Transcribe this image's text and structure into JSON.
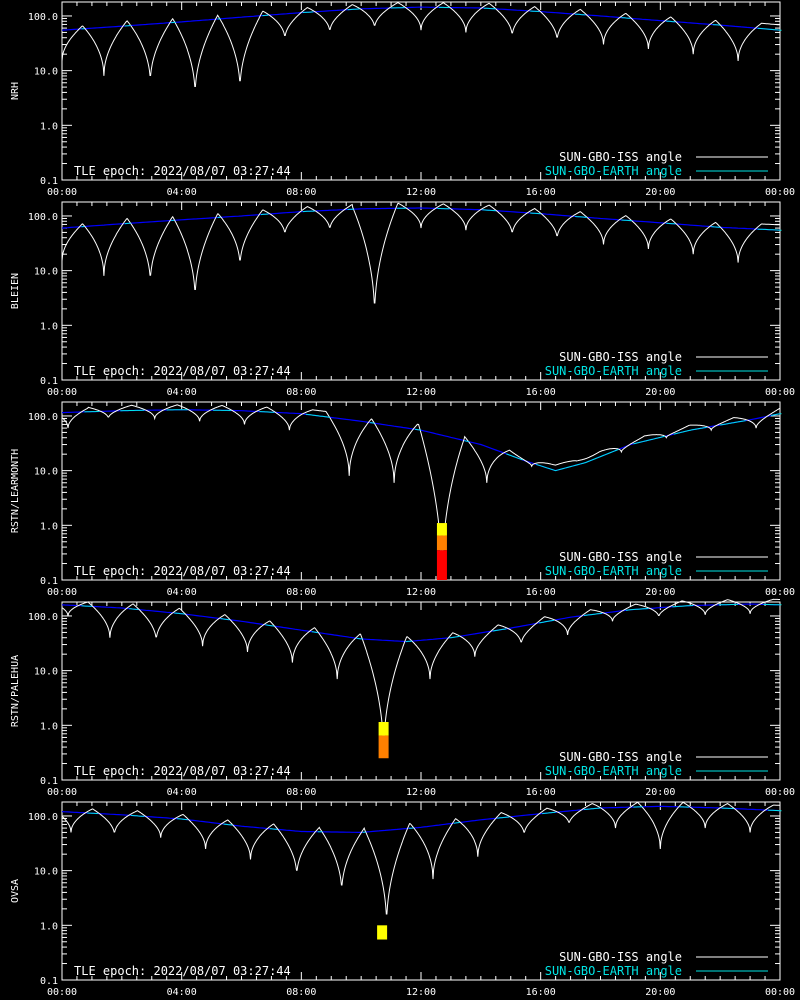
{
  "figure": {
    "epoch_label": "TLE epoch: 2022/08/07 03:27:44",
    "legend": [
      {
        "label": "SUN-GBO-ISS angle",
        "color": "#ffffff"
      },
      {
        "label": "SUN-GBO-EARTH angle",
        "color": "#00e5e5"
      }
    ],
    "earth_shadow_color": "#0000ff",
    "mark_colors": {
      "yellow": "#ffff00",
      "orange": "#ff8000",
      "red": "#ff0000"
    }
  },
  "chart_data": [
    {
      "type": "line",
      "ylabel": "NRH",
      "yscale": "log",
      "ylim": [
        0.1,
        180
      ],
      "x_ticks": [
        "00:00",
        "04:00",
        "08:00",
        "12:00",
        "16:00",
        "20:00",
        "00:00"
      ],
      "y_ticks": [
        "0.1",
        "1.0",
        "10.0",
        "100.0"
      ],
      "earth_angle": {
        "x_hours": [
          0,
          2,
          4,
          6,
          8,
          10,
          12,
          14,
          16,
          18,
          20,
          22,
          24
        ],
        "values": [
          55,
          65,
          78,
          95,
          115,
          135,
          145,
          140,
          120,
          100,
          82,
          68,
          55
        ]
      },
      "iss_minima": [
        {
          "t": 0.0,
          "v": 15
        },
        {
          "t": 1.4,
          "v": 8
        },
        {
          "t": 2.95,
          "v": 6
        },
        {
          "t": 4.45,
          "v": 3.5
        },
        {
          "t": 5.95,
          "v": 4.5
        },
        {
          "t": 7.45,
          "v": 38
        },
        {
          "t": 8.95,
          "v": 50
        },
        {
          "t": 10.45,
          "v": 60
        },
        {
          "t": 12.0,
          "v": 55
        },
        {
          "t": 13.5,
          "v": 50
        },
        {
          "t": 15.05,
          "v": 42
        },
        {
          "t": 16.55,
          "v": 35
        },
        {
          "t": 18.1,
          "v": 30
        },
        {
          "t": 19.6,
          "v": 25
        },
        {
          "t": 21.1,
          "v": 20
        },
        {
          "t": 22.6,
          "v": 15
        }
      ],
      "occultations": []
    },
    {
      "type": "line",
      "ylabel": "BLEIEN",
      "yscale": "log",
      "ylim": [
        0.1,
        180
      ],
      "x_ticks": [
        "00:00",
        "04:00",
        "08:00",
        "12:00",
        "16:00",
        "20:00",
        "00:00"
      ],
      "y_ticks": [
        "0.1",
        "1.0",
        "10.0",
        "100.0"
      ],
      "earth_angle": {
        "x_hours": [
          0,
          2,
          4,
          6,
          8,
          10,
          12,
          14,
          16,
          18,
          20,
          22,
          24
        ],
        "values": [
          60,
          72,
          85,
          100,
          120,
          135,
          140,
          130,
          110,
          90,
          75,
          62,
          55
        ]
      },
      "iss_minima": [
        {
          "t": 0.0,
          "v": 15
        },
        {
          "t": 1.4,
          "v": 8
        },
        {
          "t": 2.95,
          "v": 6
        },
        {
          "t": 4.45,
          "v": 3
        },
        {
          "t": 5.95,
          "v": 12
        },
        {
          "t": 7.45,
          "v": 45
        },
        {
          "t": 8.95,
          "v": 55
        },
        {
          "t": 10.45,
          "v": 1.5
        },
        {
          "t": 12.0,
          "v": 60
        },
        {
          "t": 13.5,
          "v": 55
        },
        {
          "t": 15.05,
          "v": 45
        },
        {
          "t": 16.55,
          "v": 38
        },
        {
          "t": 18.1,
          "v": 30
        },
        {
          "t": 19.6,
          "v": 25
        },
        {
          "t": 21.1,
          "v": 20
        },
        {
          "t": 22.6,
          "v": 14
        }
      ],
      "occultations": []
    },
    {
      "type": "line",
      "ylabel": "RSTN/LEARMONTH",
      "yscale": "log",
      "ylim": [
        0.1,
        180
      ],
      "x_ticks": [
        "00:00",
        "04:00",
        "08:00",
        "12:00",
        "16:00",
        "20:00",
        "00:00"
      ],
      "y_ticks": [
        "0.1",
        "1.0",
        "10.0",
        "100.0"
      ],
      "earth_angle": {
        "x_hours": [
          0,
          2,
          4,
          6,
          8,
          10,
          12,
          14,
          15.5,
          16.5,
          17.5,
          19,
          21,
          23,
          24
        ],
        "values": [
          115,
          125,
          130,
          125,
          110,
          80,
          55,
          30,
          15,
          10,
          14,
          30,
          55,
          85,
          110
        ]
      },
      "iss_minima": [
        {
          "t": 0.2,
          "v": 60
        },
        {
          "t": 1.55,
          "v": 90
        },
        {
          "t": 3.1,
          "v": 90
        },
        {
          "t": 4.6,
          "v": 80
        },
        {
          "t": 6.1,
          "v": 70
        },
        {
          "t": 7.6,
          "v": 55
        },
        {
          "t": 9.6,
          "v": 8
        },
        {
          "t": 11.1,
          "v": 6
        },
        {
          "t": 12.7,
          "v": 0.1
        },
        {
          "t": 14.2,
          "v": 6
        },
        {
          "t": 15.7,
          "v": 12
        },
        {
          "t": 17.2,
          "v": 15
        },
        {
          "t": 18.7,
          "v": 22
        },
        {
          "t": 20.2,
          "v": 40
        },
        {
          "t": 21.7,
          "v": 55
        },
        {
          "t": 23.2,
          "v": 60
        }
      ],
      "occultations": [
        {
          "t": 12.7,
          "segments": [
            {
              "from": 0.65,
              "to": 1.1,
              "color": "yellow"
            },
            {
              "from": 0.35,
              "to": 0.65,
              "color": "orange"
            },
            {
              "from": 0.1,
              "to": 0.35,
              "color": "red"
            }
          ]
        }
      ]
    },
    {
      "type": "line",
      "ylabel": "RSTN/PALEHUA",
      "yscale": "log",
      "ylim": [
        0.1,
        180
      ],
      "x_ticks": [
        "00:00",
        "04:00",
        "08:00",
        "12:00",
        "16:00",
        "20:00",
        "00:00"
      ],
      "y_ticks": [
        "0.1",
        "1.0",
        "10.0",
        "100.0"
      ],
      "earth_angle": {
        "x_hours": [
          0,
          2,
          4,
          6,
          8,
          10,
          11.5,
          13,
          15,
          17,
          19,
          21,
          23,
          24
        ],
        "values": [
          160,
          140,
          110,
          80,
          55,
          38,
          34,
          40,
          60,
          95,
          130,
          155,
          165,
          160
        ]
      },
      "iss_minima": [
        {
          "t": 0.2,
          "v": 100
        },
        {
          "t": 1.6,
          "v": 40
        },
        {
          "t": 3.15,
          "v": 35
        },
        {
          "t": 4.7,
          "v": 28
        },
        {
          "t": 6.2,
          "v": 22
        },
        {
          "t": 7.7,
          "v": 14
        },
        {
          "t": 9.2,
          "v": 7
        },
        {
          "t": 10.75,
          "v": 0.3
        },
        {
          "t": 12.3,
          "v": 7
        },
        {
          "t": 13.8,
          "v": 18
        },
        {
          "t": 15.35,
          "v": 30
        },
        {
          "t": 16.9,
          "v": 45
        },
        {
          "t": 18.4,
          "v": 80
        },
        {
          "t": 19.95,
          "v": 95
        },
        {
          "t": 21.5,
          "v": 105
        },
        {
          "t": 23.0,
          "v": 110
        }
      ],
      "occultations": [
        {
          "t": 10.75,
          "segments": [
            {
              "from": 0.65,
              "to": 1.15,
              "color": "yellow"
            },
            {
              "from": 0.25,
              "to": 0.65,
              "color": "orange"
            }
          ]
        }
      ]
    },
    {
      "type": "line",
      "ylabel": "OVSA",
      "yscale": "log",
      "ylim": [
        0.1,
        180
      ],
      "x_ticks": [
        "00:00",
        "04:00",
        "08:00",
        "12:00",
        "16:00",
        "20:00",
        "00:00"
      ],
      "y_ticks": [
        "0.1",
        "1.0",
        "10.0",
        "100.0"
      ],
      "earth_angle": {
        "x_hours": [
          0,
          2,
          4,
          6,
          8,
          10,
          12,
          14,
          16,
          18,
          20,
          22,
          24
        ],
        "values": [
          120,
          105,
          88,
          65,
          52,
          50,
          62,
          85,
          110,
          140,
          150,
          140,
          125
        ]
      },
      "iss_minima": [
        {
          "t": 0.3,
          "v": 50
        },
        {
          "t": 1.75,
          "v": 45
        },
        {
          "t": 3.3,
          "v": 40
        },
        {
          "t": 4.8,
          "v": 25
        },
        {
          "t": 6.3,
          "v": 16
        },
        {
          "t": 7.85,
          "v": 8
        },
        {
          "t": 9.35,
          "v": 4
        },
        {
          "t": 10.85,
          "v": 1.0
        },
        {
          "t": 12.4,
          "v": 7
        },
        {
          "t": 13.9,
          "v": 18
        },
        {
          "t": 15.45,
          "v": 45
        },
        {
          "t": 16.95,
          "v": 70
        },
        {
          "t": 18.5,
          "v": 60
        },
        {
          "t": 20.0,
          "v": 25
        },
        {
          "t": 21.5,
          "v": 60
        },
        {
          "t": 23.0,
          "v": 50
        }
      ],
      "occultations": [
        {
          "t": 10.7,
          "segments": [
            {
              "from": 0.55,
              "to": 1.0,
              "color": "yellow"
            }
          ]
        }
      ]
    }
  ]
}
